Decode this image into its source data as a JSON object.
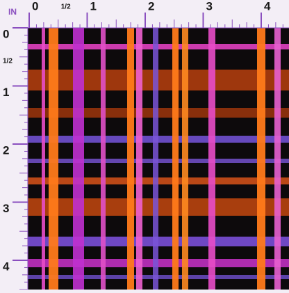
{
  "ruler": {
    "unit": "IN",
    "top_labels": [
      "0",
      "1/2",
      "1",
      "2",
      "3",
      "4"
    ],
    "left_labels": [
      "0",
      "1/2",
      "1",
      "2",
      "3",
      "4"
    ]
  }
}
